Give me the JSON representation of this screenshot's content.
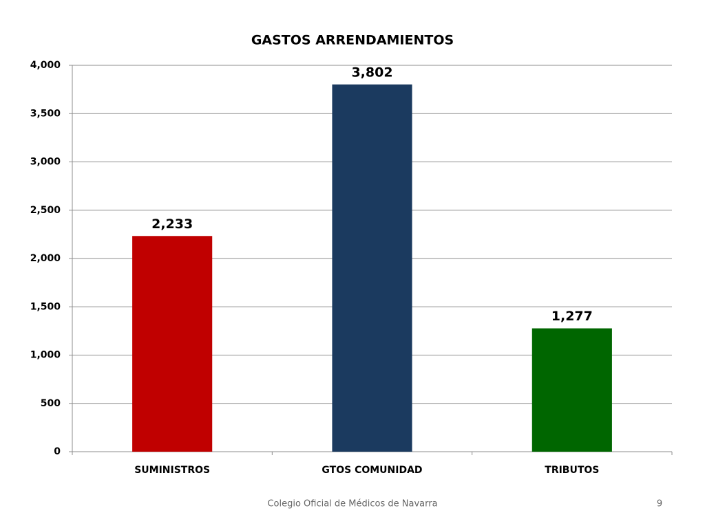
{
  "chart_data": {
    "type": "bar",
    "title": "GASTOS ARRENDAMIENTOS",
    "categories": [
      "SUMINISTROS",
      "GTOS COMUNIDAD",
      "TRIBUTOS"
    ],
    "values": [
      2233,
      3802,
      1277
    ],
    "value_labels": [
      "2,233",
      "3,802",
      "1,277"
    ],
    "colors": [
      "#c00000",
      "#1b3a5f",
      "#006600"
    ],
    "ylim": [
      0,
      4000
    ],
    "yticks": [
      0,
      500,
      {
        "value": 1000,
        "label": "1,000"
      },
      {
        "value": 1500,
        "label": "1,500"
      },
      {
        "value": 2000,
        "label": "2,000"
      },
      {
        "value": 2500,
        "label": "2,500"
      },
      {
        "value": 3000,
        "label": "3,000"
      },
      {
        "value": 3500,
        "label": "3,500"
      },
      {
        "value": 4000,
        "label": "4,000"
      }
    ],
    "grid": true
  },
  "footer": {
    "text": "Colegio Oficial de Médicos de Navarra",
    "page_number": "9"
  }
}
